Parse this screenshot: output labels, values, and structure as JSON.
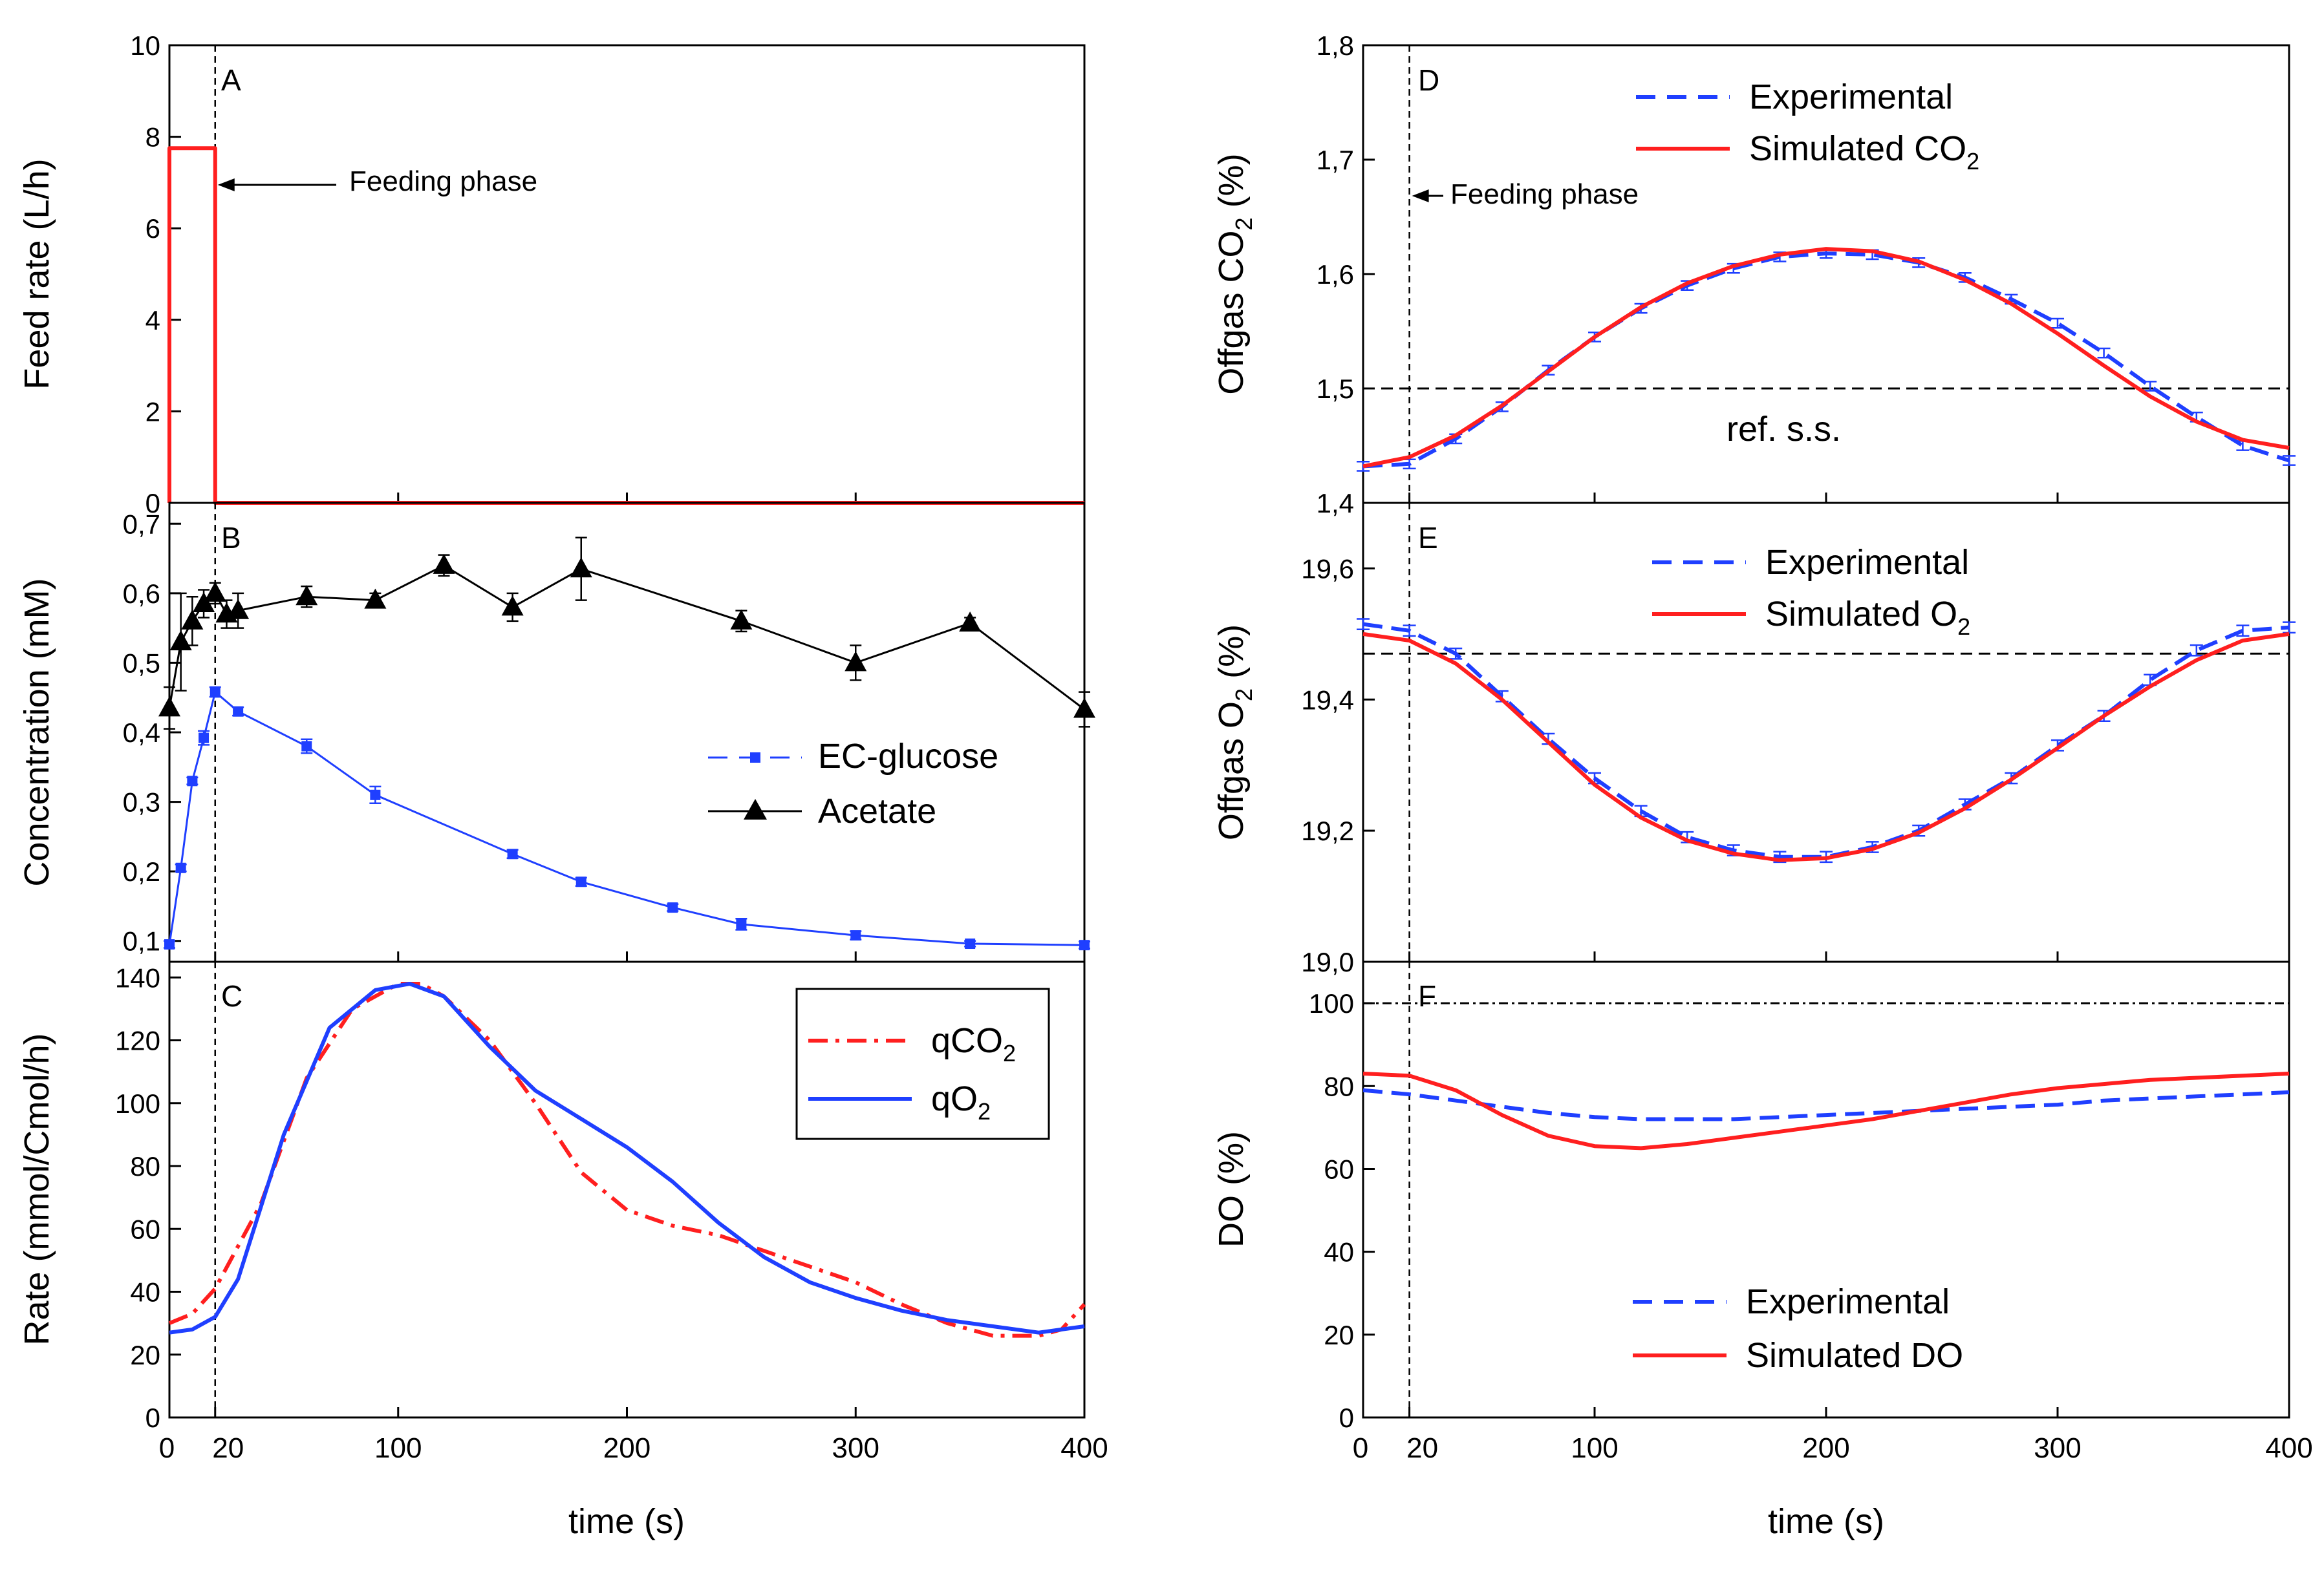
{
  "figure": {
    "xlabel_left": "time (s)",
    "xlabel_right": "time (s)",
    "x_ticks_left": [
      "0",
      "20",
      "100",
      "200",
      "300",
      "400"
    ],
    "x_ticks_right": [
      "0",
      "20",
      "100",
      "200",
      "300",
      "400"
    ],
    "colors": {
      "red": "#ff1f1f",
      "blue": "#1f3fff",
      "black": "#000000"
    }
  },
  "chart_data": [
    {
      "id": "A",
      "panel_label": "A",
      "type": "line",
      "ylabel": "Feed rate (L/h)",
      "xlim": [
        0,
        400
      ],
      "ylim": [
        0,
        10
      ],
      "y_ticks": [
        "0",
        "2",
        "4",
        "6",
        "8",
        "10"
      ],
      "annotation": "Feeding phase",
      "series": [
        {
          "name": "Feed rate",
          "color": "#ff1f1f",
          "style": "solid",
          "points": [
            [
              0,
              0
            ],
            [
              0,
              7.75
            ],
            [
              20,
              7.75
            ],
            [
              20,
              0
            ],
            [
              400,
              0
            ]
          ]
        }
      ]
    },
    {
      "id": "B",
      "panel_label": "B",
      "type": "scatter",
      "ylabel": "Concentration (mM)",
      "xlim": [
        0,
        400
      ],
      "ylim": [
        0.07,
        0.73
      ],
      "y_ticks": [
        "0,1",
        "0,2",
        "0,3",
        "0,4",
        "0,5",
        "0,6",
        "0,7"
      ],
      "legend": [
        "EC-glucose",
        "Acetate"
      ],
      "series": [
        {
          "name": "EC-glucose",
          "color": "#1f3fff",
          "marker": "square",
          "x": [
            0,
            5,
            10,
            15,
            20,
            30,
            60,
            90,
            150,
            180,
            220,
            250,
            300,
            350,
            400
          ],
          "y": [
            0.095,
            0.205,
            0.33,
            0.392,
            0.458,
            0.43,
            0.38,
            0.31,
            0.225,
            0.185,
            0.148,
            0.124,
            0.108,
            0.096,
            0.094
          ],
          "err": [
            0.005,
            0.005,
            0.005,
            0.01,
            0.007,
            0.006,
            0.01,
            0.012,
            0.006,
            0.006,
            0.005,
            0.008,
            0.006,
            0.004,
            0.005
          ]
        },
        {
          "name": "Acetate",
          "color": "#000000",
          "marker": "triangle",
          "x": [
            0,
            5,
            10,
            15,
            20,
            25,
            30,
            60,
            90,
            120,
            150,
            180,
            250,
            300,
            350,
            400
          ],
          "y": [
            0.435,
            0.53,
            0.56,
            0.585,
            0.6,
            0.57,
            0.575,
            0.595,
            0.59,
            0.64,
            0.58,
            0.635,
            0.56,
            0.5,
            0.557,
            0.433
          ],
          "err": [
            0.03,
            0.07,
            0.035,
            0.02,
            0.015,
            0.02,
            0.025,
            0.015,
            0.01,
            0.015,
            0.02,
            0.045,
            0.015,
            0.025,
            0.008,
            0.025
          ]
        }
      ]
    },
    {
      "id": "C",
      "panel_label": "C",
      "type": "line",
      "ylabel": "Rate (mmol/Cmol/h)",
      "xlim": [
        0,
        400
      ],
      "ylim": [
        0,
        145
      ],
      "y_ticks": [
        "0",
        "20",
        "40",
        "60",
        "80",
        "100",
        "120",
        "140"
      ],
      "legend": [
        "qCO",
        "qO"
      ],
      "legend_sub": "2",
      "series": [
        {
          "name": "qCO2",
          "color": "#ff1f1f",
          "style": "dashdot",
          "points": [
            [
              0,
              30
            ],
            [
              10,
              33
            ],
            [
              20,
              41
            ],
            [
              40,
              68
            ],
            [
              60,
              108
            ],
            [
              80,
              130
            ],
            [
              100,
              138
            ],
            [
              110,
              138
            ],
            [
              120,
              134
            ],
            [
              140,
              120
            ],
            [
              160,
              100
            ],
            [
              180,
              78
            ],
            [
              200,
              66
            ],
            [
              220,
              61
            ],
            [
              240,
              58
            ],
            [
              260,
              53
            ],
            [
              280,
              48
            ],
            [
              300,
              43
            ],
            [
              320,
              36
            ],
            [
              340,
              30
            ],
            [
              360,
              26
            ],
            [
              380,
              26
            ],
            [
              390,
              28
            ],
            [
              400,
              36
            ]
          ]
        },
        {
          "name": "qO2",
          "color": "#1f3fff",
          "style": "solid",
          "points": [
            [
              0,
              27
            ],
            [
              10,
              28
            ],
            [
              20,
              32
            ],
            [
              30,
              44
            ],
            [
              50,
              90
            ],
            [
              70,
              124
            ],
            [
              90,
              136
            ],
            [
              105,
              138
            ],
            [
              120,
              134
            ],
            [
              140,
              118
            ],
            [
              160,
              104
            ],
            [
              180,
              95
            ],
            [
              200,
              86
            ],
            [
              220,
              75
            ],
            [
              240,
              62
            ],
            [
              260,
              51
            ],
            [
              280,
              43
            ],
            [
              300,
              38
            ],
            [
              320,
              34
            ],
            [
              340,
              31
            ],
            [
              360,
              29
            ],
            [
              380,
              27
            ],
            [
              400,
              29
            ]
          ]
        }
      ]
    },
    {
      "id": "D",
      "panel_label": "D",
      "type": "line",
      "ylabel": "Offgas CO",
      "ylabel_sub": "2",
      "ylabel_tail": " (%)",
      "xlim": [
        0,
        400
      ],
      "ylim": [
        1.4,
        1.8
      ],
      "y_ticks": [
        "1,4",
        "1,5",
        "1,6",
        "1,7",
        "1,8"
      ],
      "reference_value": 1.5,
      "reference_label": "ref. s.s.",
      "annotation": "Feeding phase",
      "legend": [
        "Experimental",
        "Simulated CO"
      ],
      "legend_sub": "2",
      "series": [
        {
          "name": "Experimental",
          "color": "#1f3fff",
          "style": "dashed",
          "points": [
            [
              0,
              1.432
            ],
            [
              20,
              1.434
            ],
            [
              40,
              1.456
            ],
            [
              60,
              1.484
            ],
            [
              80,
              1.516
            ],
            [
              100,
              1.545
            ],
            [
              120,
              1.57
            ],
            [
              140,
              1.59
            ],
            [
              160,
              1.605
            ],
            [
              180,
              1.615
            ],
            [
              200,
              1.618
            ],
            [
              220,
              1.617
            ],
            [
              240,
              1.61
            ],
            [
              260,
              1.597
            ],
            [
              280,
              1.578
            ],
            [
              300,
              1.557
            ],
            [
              320,
              1.531
            ],
            [
              340,
              1.502
            ],
            [
              360,
              1.475
            ],
            [
              380,
              1.45
            ],
            [
              400,
              1.437
            ]
          ]
        },
        {
          "name": "Simulated CO2",
          "color": "#ff1f1f",
          "style": "solid",
          "points": [
            [
              0,
              1.432
            ],
            [
              20,
              1.44
            ],
            [
              40,
              1.459
            ],
            [
              60,
              1.485
            ],
            [
              80,
              1.515
            ],
            [
              100,
              1.545
            ],
            [
              120,
              1.571
            ],
            [
              140,
              1.592
            ],
            [
              160,
              1.607
            ],
            [
              180,
              1.617
            ],
            [
              200,
              1.622
            ],
            [
              220,
              1.62
            ],
            [
              240,
              1.611
            ],
            [
              260,
              1.595
            ],
            [
              280,
              1.574
            ],
            [
              300,
              1.548
            ],
            [
              320,
              1.52
            ],
            [
              340,
              1.493
            ],
            [
              360,
              1.471
            ],
            [
              380,
              1.455
            ],
            [
              400,
              1.448
            ]
          ]
        }
      ]
    },
    {
      "id": "E",
      "panel_label": "E",
      "type": "line",
      "ylabel": "Offgas O",
      "ylabel_sub": "2",
      "ylabel_tail": " (%)",
      "xlim": [
        0,
        400
      ],
      "ylim": [
        19.0,
        19.7
      ],
      "y_ticks": [
        "19,0",
        "19,2",
        "19,4",
        "19,6"
      ],
      "reference_value": 19.47,
      "legend": [
        "Experimental",
        "Simulated O"
      ],
      "legend_sub": "2",
      "series": [
        {
          "name": "Experimental",
          "color": "#1f3fff",
          "style": "dashed",
          "points": [
            [
              0,
              19.515
            ],
            [
              20,
              19.505
            ],
            [
              40,
              19.47
            ],
            [
              60,
              19.405
            ],
            [
              80,
              19.34
            ],
            [
              100,
              19.28
            ],
            [
              120,
              19.23
            ],
            [
              140,
              19.19
            ],
            [
              160,
              19.17
            ],
            [
              180,
              19.16
            ],
            [
              200,
              19.16
            ],
            [
              220,
              19.175
            ],
            [
              240,
              19.2
            ],
            [
              260,
              19.24
            ],
            [
              280,
              19.28
            ],
            [
              300,
              19.33
            ],
            [
              320,
              19.375
            ],
            [
              340,
              19.43
            ],
            [
              360,
              19.475
            ],
            [
              380,
              19.505
            ],
            [
              400,
              19.51
            ]
          ]
        },
        {
          "name": "Simulated O2",
          "color": "#ff1f1f",
          "style": "solid",
          "points": [
            [
              0,
              19.5
            ],
            [
              20,
              19.49
            ],
            [
              40,
              19.455
            ],
            [
              60,
              19.4
            ],
            [
              80,
              19.335
            ],
            [
              100,
              19.27
            ],
            [
              120,
              19.22
            ],
            [
              140,
              19.185
            ],
            [
              160,
              19.165
            ],
            [
              180,
              19.155
            ],
            [
              200,
              19.158
            ],
            [
              220,
              19.172
            ],
            [
              240,
              19.197
            ],
            [
              260,
              19.234
            ],
            [
              280,
              19.278
            ],
            [
              300,
              19.326
            ],
            [
              320,
              19.375
            ],
            [
              340,
              19.42
            ],
            [
              360,
              19.46
            ],
            [
              380,
              19.49
            ],
            [
              400,
              19.5
            ]
          ]
        }
      ]
    },
    {
      "id": "F",
      "panel_label": "F",
      "type": "line",
      "ylabel": "DO (%)",
      "xlim": [
        0,
        400
      ],
      "ylim": [
        0,
        110
      ],
      "y_ticks": [
        "0",
        "20",
        "40",
        "60",
        "80",
        "100"
      ],
      "reference_value": 100,
      "legend": [
        "Experimental",
        "Simulated DO"
      ],
      "series": [
        {
          "name": "Experimental",
          "color": "#1f3fff",
          "style": "dashed",
          "points": [
            [
              0,
              79
            ],
            [
              20,
              78
            ],
            [
              40,
              76.5
            ],
            [
              60,
              75
            ],
            [
              80,
              73.5
            ],
            [
              100,
              72.5
            ],
            [
              120,
              72
            ],
            [
              140,
              72
            ],
            [
              160,
              72
            ],
            [
              180,
              72.5
            ],
            [
              200,
              73
            ],
            [
              220,
              73.5
            ],
            [
              240,
              74
            ],
            [
              260,
              74.5
            ],
            [
              280,
              75
            ],
            [
              300,
              75.5
            ],
            [
              320,
              76.5
            ],
            [
              340,
              77
            ],
            [
              360,
              77.5
            ],
            [
              380,
              78
            ],
            [
              400,
              78.5
            ]
          ]
        },
        {
          "name": "Simulated DO",
          "color": "#ff1f1f",
          "style": "solid",
          "points": [
            [
              0,
              83
            ],
            [
              20,
              82.5
            ],
            [
              40,
              79
            ],
            [
              60,
              73
            ],
            [
              80,
              68
            ],
            [
              100,
              65.5
            ],
            [
              120,
              65
            ],
            [
              140,
              66
            ],
            [
              160,
              67.5
            ],
            [
              180,
              69
            ],
            [
              200,
              70.5
            ],
            [
              220,
              72
            ],
            [
              240,
              74
            ],
            [
              260,
              76
            ],
            [
              280,
              78
            ],
            [
              300,
              79.5
            ],
            [
              320,
              80.5
            ],
            [
              340,
              81.5
            ],
            [
              360,
              82
            ],
            [
              380,
              82.5
            ],
            [
              400,
              83
            ]
          ]
        }
      ]
    }
  ]
}
